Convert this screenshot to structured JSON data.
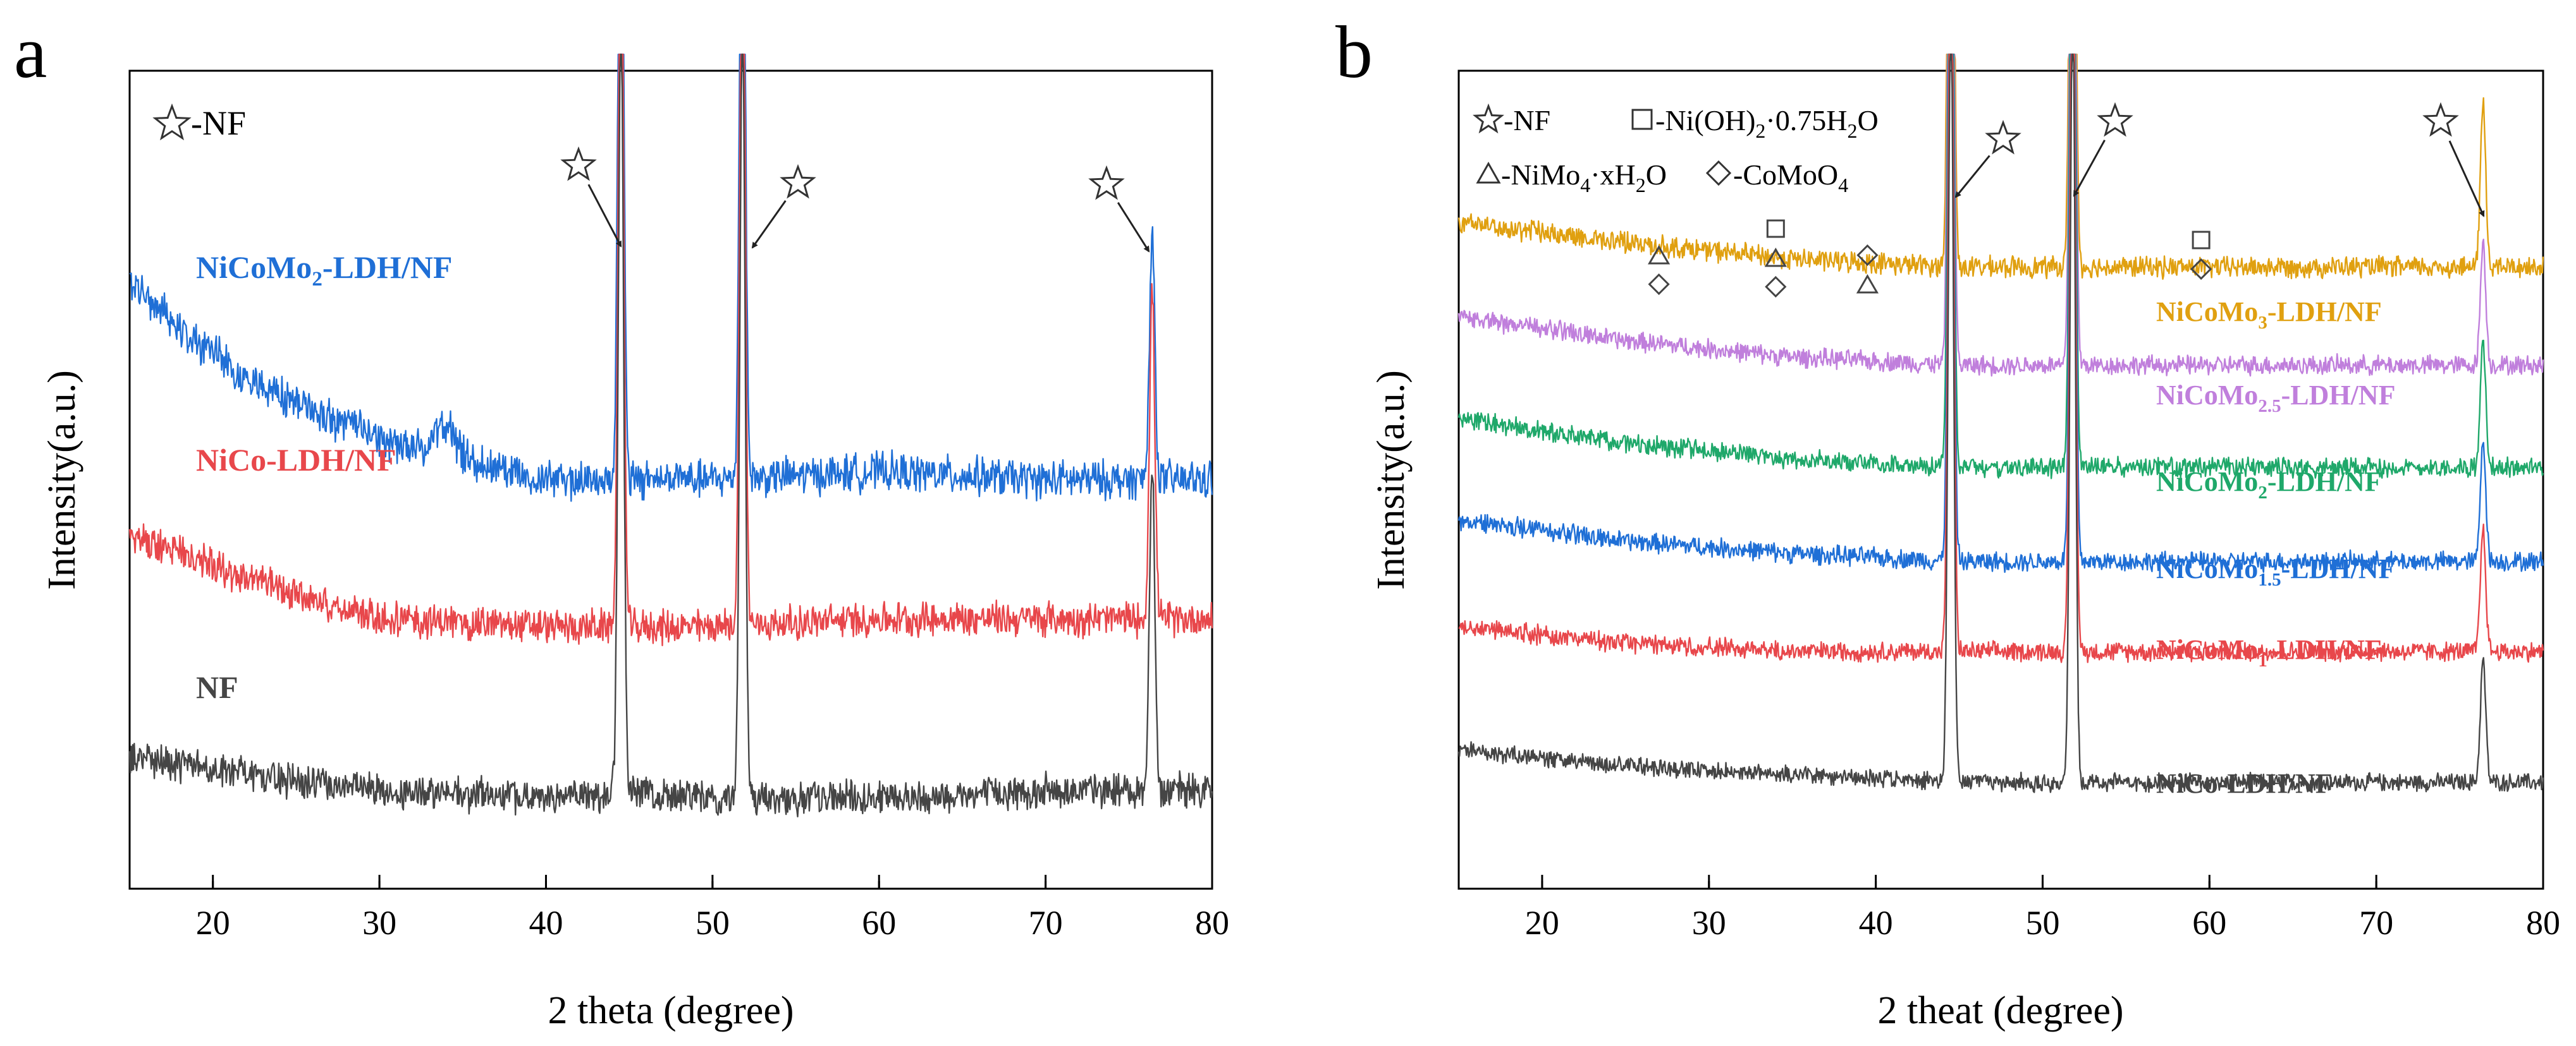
{
  "chart_data": [
    {
      "panel": "a",
      "type": "line",
      "xlabel": "2 theta (degree)",
      "ylabel": "Intensity(a.u.)",
      "xlim": [
        15,
        80
      ],
      "xticks": [
        20,
        30,
        40,
        50,
        60,
        70,
        80
      ],
      "peaks_2theta": [
        44.5,
        51.8,
        76.4
      ],
      "marker_legend": "-NF",
      "series": [
        {
          "name": "NiCoMo2-LDH/NF",
          "label_main": "NiCoMo",
          "label_sub": "2",
          "label_tail": "-LDH/NF",
          "color": "#1f6fd6",
          "baseline": [
            [
              15,
              0.74
            ],
            [
              22,
              0.62
            ],
            [
              30,
              0.55
            ],
            [
              40,
              0.5
            ],
            [
              50,
              0.5
            ],
            [
              60,
              0.51
            ],
            [
              70,
              0.5
            ],
            [
              80,
              0.5
            ]
          ],
          "noise": 0.02,
          "bump": [
            34,
            0.04
          ],
          "peak_heights": [
            0.95,
            0.95,
            0.3
          ]
        },
        {
          "name": "NiCo-LDH/NF",
          "label_main": "NiCo-LDH/NF",
          "label_sub": "",
          "label_tail": "",
          "color": "#e8474b",
          "baseline": [
            [
              15,
              0.43
            ],
            [
              22,
              0.38
            ],
            [
              30,
              0.33
            ],
            [
              40,
              0.32
            ],
            [
              50,
              0.32
            ],
            [
              60,
              0.33
            ],
            [
              70,
              0.33
            ],
            [
              80,
              0.33
            ]
          ],
          "noise": 0.018,
          "peak_heights": [
            0.95,
            0.95,
            0.4
          ]
        },
        {
          "name": "NF",
          "label_main": "NF",
          "label_sub": "",
          "label_tail": "",
          "color": "#454545",
          "baseline": [
            [
              15,
              0.16
            ],
            [
              22,
              0.14
            ],
            [
              30,
              0.12
            ],
            [
              40,
              0.11
            ],
            [
              45,
              0.12
            ],
            [
              50,
              0.11
            ],
            [
              60,
              0.11
            ],
            [
              70,
              0.12
            ],
            [
              80,
              0.12
            ]
          ],
          "noise": 0.018,
          "peak_heights": [
            0.95,
            0.95,
            0.4
          ]
        }
      ]
    },
    {
      "panel": "b",
      "type": "line",
      "xlabel": "2 theat (degree)",
      "ylabel": "Intensity(a.u.)",
      "xlim": [
        15,
        80
      ],
      "xticks": [
        20,
        30,
        40,
        50,
        60,
        70,
        80
      ],
      "peaks_2theta": [
        44.5,
        51.8,
        76.4
      ],
      "legend": {
        "nf": "-NF",
        "ni_oh": "-Ni(OH)",
        "ni_oh_sub": "2",
        "ni_oh_tail": "·0.75H",
        "ni_oh_sub2": "2",
        "ni_oh_end": "O",
        "nimo": "-NiMo",
        "nimo_sub": "4",
        "nimo_tail": "·xH",
        "nimo_sub2": "2",
        "nimo_end": "O",
        "comoo4": "-CoMoO",
        "comoo4_sub": "4"
      },
      "phase_markers": [
        {
          "x": 27,
          "symbols": [
            "triangle",
            "diamond"
          ]
        },
        {
          "x": 34,
          "symbols": [
            "square",
            "triangle",
            "diamond"
          ]
        },
        {
          "x": 39.5,
          "symbols": [
            "diamond",
            "triangle"
          ]
        },
        {
          "x": 59.5,
          "symbols": [
            "square",
            "diamond"
          ]
        }
      ],
      "series": [
        {
          "name": "NiCoMo3-LDH/NF",
          "label_main": "NiCoMo",
          "label_sub": "3",
          "label_tail": "-LDH/NF",
          "color": "#e0a010",
          "baseline": [
            [
              15,
              0.815
            ],
            [
              25,
              0.79
            ],
            [
              35,
              0.77
            ],
            [
              45,
              0.76
            ],
            [
              60,
              0.76
            ],
            [
              80,
              0.76
            ]
          ],
          "noise": 0.011,
          "peak_heights": [
            0.95,
            0.95,
            0.2
          ]
        },
        {
          "name": "NiCoMo2.5-LDH/NF",
          "label_main": "NiCoMo",
          "label_sub": "2.5",
          "label_tail": "-LDH/NF",
          "color": "#c07fdc",
          "baseline": [
            [
              15,
              0.7
            ],
            [
              25,
              0.67
            ],
            [
              35,
              0.65
            ],
            [
              45,
              0.64
            ],
            [
              60,
              0.64
            ],
            [
              80,
              0.64
            ]
          ],
          "noise": 0.01,
          "peak_heights": [
            0.95,
            0.95,
            0.15
          ]
        },
        {
          "name": "NiCoMo2-LDH/NF",
          "label_main": "NiCoMo",
          "label_sub": "2",
          "label_tail": "-LDH/NF",
          "color": "#1fa86a",
          "baseline": [
            [
              15,
              0.575
            ],
            [
              25,
              0.545
            ],
            [
              35,
              0.525
            ],
            [
              45,
              0.515
            ],
            [
              60,
              0.515
            ],
            [
              80,
              0.515
            ]
          ],
          "noise": 0.01,
          "peak_heights": [
            0.95,
            0.95,
            0.15
          ]
        },
        {
          "name": "NiCoMo1.5-LDH/NF",
          "label_main": "NiCoMo",
          "label_sub": "1.5",
          "label_tail": "-LDH/NF",
          "color": "#1f6fd6",
          "baseline": [
            [
              15,
              0.45
            ],
            [
              25,
              0.425
            ],
            [
              35,
              0.41
            ],
            [
              45,
              0.4
            ],
            [
              60,
              0.4
            ],
            [
              80,
              0.4
            ]
          ],
          "noise": 0.01,
          "peak_heights": [
            0.95,
            0.95,
            0.15
          ]
        },
        {
          "name": "NiCoMo1-LDH/NF",
          "label_main": "NiCoMo",
          "label_sub": "1",
          "label_tail": "-LDH/NF",
          "color": "#e8474b",
          "baseline": [
            [
              15,
              0.32
            ],
            [
              25,
              0.3
            ],
            [
              35,
              0.29
            ],
            [
              45,
              0.29
            ],
            [
              60,
              0.29
            ],
            [
              80,
              0.29
            ]
          ],
          "noise": 0.01,
          "peak_heights": [
            0.95,
            0.95,
            0.15
          ]
        },
        {
          "name": "NiCo-LDH/NF",
          "label_main": "NiCo-LDH/NF",
          "label_sub": "",
          "label_tail": "",
          "color": "#454545",
          "baseline": [
            [
              15,
              0.17
            ],
            [
              25,
              0.15
            ],
            [
              35,
              0.14
            ],
            [
              45,
              0.13
            ],
            [
              60,
              0.13
            ],
            [
              80,
              0.13
            ]
          ],
          "noise": 0.009,
          "peak_heights": [
            0.95,
            0.95,
            0.15
          ]
        }
      ]
    }
  ]
}
